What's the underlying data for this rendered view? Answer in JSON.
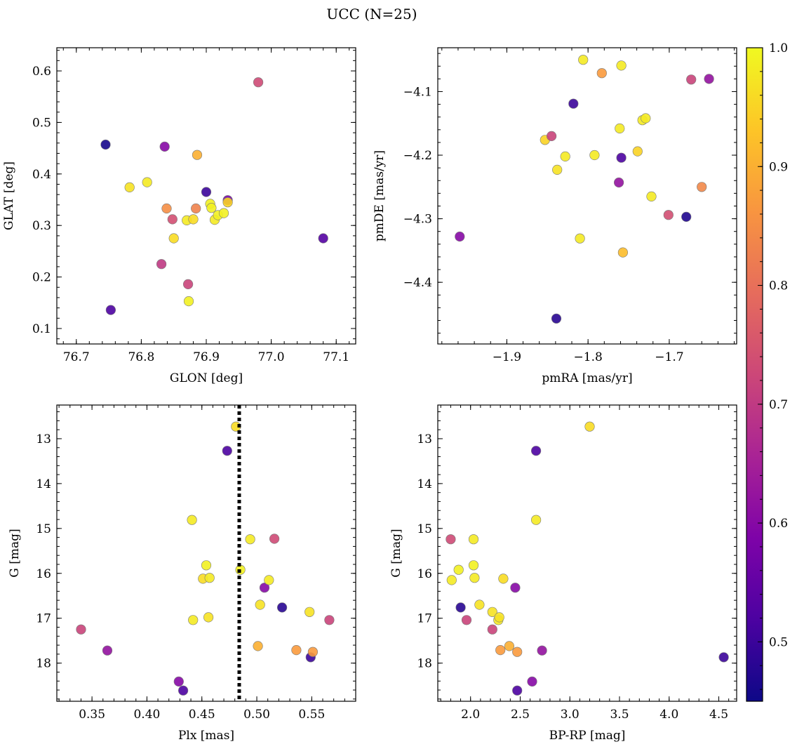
{
  "chart_data": {
    "title": "UCC (N=25)",
    "colorbar": {
      "colormap": "plasma",
      "range": [
        0.45,
        1.0
      ],
      "ticks": [
        0.5,
        0.6,
        0.7,
        0.8,
        0.9,
        1.0
      ],
      "tick_labels": [
        "0.5",
        "0.6",
        "0.7",
        "0.8",
        "0.9",
        "1.0"
      ]
    },
    "panels": [
      {
        "id": "sky",
        "type": "scatter",
        "xlabel": "GLON [deg]",
        "ylabel": "GLAT [deg]",
        "xlim": [
          76.67,
          77.13
        ],
        "ylim": [
          0.07,
          0.645
        ],
        "y_inverted": false,
        "xticks": [
          76.7,
          76.8,
          76.9,
          77.0,
          77.1
        ],
        "xtick_labels": [
          "76.7",
          "76.8",
          "76.9",
          "77.0",
          "77.1"
        ],
        "yticks": [
          0.1,
          0.2,
          0.3,
          0.4,
          0.5,
          0.6
        ],
        "ytick_labels": [
          "0.1",
          "0.2",
          "0.3",
          "0.4",
          "0.5",
          "0.6"
        ],
        "x_minor_step": 0.02,
        "y_minor_step": 0.02,
        "points": [
          {
            "x": 76.745,
            "y": 0.457,
            "c": 0.46
          },
          {
            "x": 76.753,
            "y": 0.136,
            "c": 0.52
          },
          {
            "x": 76.782,
            "y": 0.374,
            "c": 0.97
          },
          {
            "x": 76.809,
            "y": 0.384,
            "c": 0.98
          },
          {
            "x": 76.831,
            "y": 0.225,
            "c": 0.7
          },
          {
            "x": 76.836,
            "y": 0.453,
            "c": 0.6
          },
          {
            "x": 76.839,
            "y": 0.333,
            "c": 0.85
          },
          {
            "x": 76.848,
            "y": 0.312,
            "c": 0.74
          },
          {
            "x": 76.85,
            "y": 0.275,
            "c": 0.96
          },
          {
            "x": 76.87,
            "y": 0.31,
            "c": 0.98
          },
          {
            "x": 76.872,
            "y": 0.186,
            "c": 0.72
          },
          {
            "x": 76.873,
            "y": 0.153,
            "c": 0.99
          },
          {
            "x": 76.88,
            "y": 0.312,
            "c": 0.96
          },
          {
            "x": 76.884,
            "y": 0.333,
            "c": 0.83
          },
          {
            "x": 76.886,
            "y": 0.437,
            "c": 0.9
          },
          {
            "x": 76.9,
            "y": 0.365,
            "c": 0.5
          },
          {
            "x": 76.906,
            "y": 0.342,
            "c": 0.99
          },
          {
            "x": 76.908,
            "y": 0.334,
            "c": 0.99
          },
          {
            "x": 76.913,
            "y": 0.311,
            "c": 0.98
          },
          {
            "x": 76.918,
            "y": 0.32,
            "c": 0.99
          },
          {
            "x": 76.927,
            "y": 0.324,
            "c": 0.99
          },
          {
            "x": 76.933,
            "y": 0.349,
            "c": 0.58
          },
          {
            "x": 76.933,
            "y": 0.345,
            "c": 0.95
          },
          {
            "x": 76.98,
            "y": 0.578,
            "c": 0.73
          },
          {
            "x": 77.08,
            "y": 0.275,
            "c": 0.53
          }
        ]
      },
      {
        "id": "pm",
        "type": "scatter",
        "xlabel": "pmRA [mas/yr]",
        "ylabel": "pmDE [mas/yr]",
        "xlim": [
          -1.985,
          -1.617
        ],
        "ylim": [
          -4.497,
          -4.031
        ],
        "y_inverted": false,
        "xticks": [
          -1.9,
          -1.8,
          -1.7
        ],
        "xtick_labels": [
          "−1.9",
          "−1.8",
          "−1.7"
        ],
        "yticks": [
          -4.4,
          -4.3,
          -4.2,
          -4.1
        ],
        "ytick_labels": [
          "−4.4",
          "−4.3",
          "−4.2",
          "−4.1"
        ],
        "x_minor_step": 0.02,
        "y_minor_step": 0.02,
        "points": [
          {
            "x": -1.958,
            "y": -4.328,
            "c": 0.6
          },
          {
            "x": -1.853,
            "y": -4.176,
            "c": 0.95
          },
          {
            "x": -1.845,
            "y": -4.17,
            "c": 0.72
          },
          {
            "x": -1.839,
            "y": -4.457,
            "c": 0.48
          },
          {
            "x": -1.838,
            "y": -4.223,
            "c": 0.97
          },
          {
            "x": -1.828,
            "y": -4.202,
            "c": 0.98
          },
          {
            "x": -1.818,
            "y": -4.119,
            "c": 0.5
          },
          {
            "x": -1.81,
            "y": -4.331,
            "c": 0.98
          },
          {
            "x": -1.806,
            "y": -4.05,
            "c": 0.98
          },
          {
            "x": -1.792,
            "y": -4.2,
            "c": 0.98
          },
          {
            "x": -1.783,
            "y": -4.071,
            "c": 0.87
          },
          {
            "x": -1.762,
            "y": -4.243,
            "c": 0.62
          },
          {
            "x": -1.761,
            "y": -4.158,
            "c": 0.98
          },
          {
            "x": -1.759,
            "y": -4.059,
            "c": 0.98
          },
          {
            "x": -1.759,
            "y": -4.204,
            "c": 0.52
          },
          {
            "x": -1.757,
            "y": -4.353,
            "c": 0.92
          },
          {
            "x": -1.739,
            "y": -4.194,
            "c": 0.95
          },
          {
            "x": -1.733,
            "y": -4.145,
            "c": 0.98
          },
          {
            "x": -1.729,
            "y": -4.142,
            "c": 0.98
          },
          {
            "x": -1.722,
            "y": -4.265,
            "c": 0.98
          },
          {
            "x": -1.701,
            "y": -4.294,
            "c": 0.74
          },
          {
            "x": -1.679,
            "y": -4.297,
            "c": 0.47
          },
          {
            "x": -1.673,
            "y": -4.081,
            "c": 0.72
          },
          {
            "x": -1.66,
            "y": -4.25,
            "c": 0.84
          },
          {
            "x": -1.651,
            "y": -4.08,
            "c": 0.62
          }
        ]
      },
      {
        "id": "plx",
        "type": "scatter",
        "xlabel": "Plx [mas]",
        "ylabel": "G [mag]",
        "xlim": [
          0.318,
          0.59
        ],
        "ylim": [
          18.85,
          12.25
        ],
        "y_inverted": true,
        "xticks": [
          0.35,
          0.4,
          0.45,
          0.5,
          0.55
        ],
        "xtick_labels": [
          "0.35",
          "0.40",
          "0.45",
          "0.50",
          "0.55"
        ],
        "yticks": [
          13,
          14,
          15,
          16,
          17,
          18
        ],
        "ytick_labels": [
          "13",
          "14",
          "15",
          "16",
          "17",
          "18"
        ],
        "x_minor_step": 0.01,
        "y_minor_step": 0.2,
        "vline": {
          "x": 0.484,
          "style": "dotted",
          "color": "#000000"
        },
        "points": [
          {
            "x": 0.34,
            "y": 17.25,
            "c": 0.72
          },
          {
            "x": 0.364,
            "y": 17.72,
            "c": 0.62
          },
          {
            "x": 0.429,
            "y": 18.41,
            "c": 0.6
          },
          {
            "x": 0.433,
            "y": 18.61,
            "c": 0.52
          },
          {
            "x": 0.441,
            "y": 14.81,
            "c": 0.98
          },
          {
            "x": 0.442,
            "y": 17.04,
            "c": 0.98
          },
          {
            "x": 0.451,
            "y": 16.12,
            "c": 0.96
          },
          {
            "x": 0.454,
            "y": 15.82,
            "c": 0.99
          },
          {
            "x": 0.456,
            "y": 16.98,
            "c": 0.97
          },
          {
            "x": 0.457,
            "y": 16.1,
            "c": 0.98
          },
          {
            "x": 0.473,
            "y": 13.27,
            "c": 0.52
          },
          {
            "x": 0.481,
            "y": 12.73,
            "c": 0.96
          },
          {
            "x": 0.485,
            "y": 15.92,
            "c": 0.99
          },
          {
            "x": 0.494,
            "y": 15.24,
            "c": 0.98
          },
          {
            "x": 0.501,
            "y": 17.62,
            "c": 0.9
          },
          {
            "x": 0.503,
            "y": 16.7,
            "c": 0.97
          },
          {
            "x": 0.507,
            "y": 16.32,
            "c": 0.6
          },
          {
            "x": 0.511,
            "y": 16.15,
            "c": 0.98
          },
          {
            "x": 0.516,
            "y": 15.23,
            "c": 0.73
          },
          {
            "x": 0.523,
            "y": 16.76,
            "c": 0.48
          },
          {
            "x": 0.536,
            "y": 17.71,
            "c": 0.87
          },
          {
            "x": 0.548,
            "y": 16.86,
            "c": 0.97
          },
          {
            "x": 0.549,
            "y": 17.87,
            "c": 0.5
          },
          {
            "x": 0.551,
            "y": 17.75,
            "c": 0.87
          },
          {
            "x": 0.566,
            "y": 17.04,
            "c": 0.72
          }
        ]
      },
      {
        "id": "cmd",
        "type": "scatter",
        "xlabel": "BP-RP [mag]",
        "ylabel": "G [mag]",
        "xlim": [
          1.67,
          4.68
        ],
        "ylim": [
          18.85,
          12.25
        ],
        "y_inverted": true,
        "xticks": [
          2.0,
          2.5,
          3.0,
          3.5,
          4.0,
          4.5
        ],
        "xtick_labels": [
          "2.0",
          "2.5",
          "3.0",
          "3.5",
          "4.0",
          "4.5"
        ],
        "yticks": [
          13,
          14,
          15,
          16,
          17,
          18
        ],
        "ytick_labels": [
          "13",
          "14",
          "15",
          "16",
          "17",
          "18"
        ],
        "x_minor_step": 0.1,
        "y_minor_step": 0.2,
        "points": [
          {
            "x": 1.8,
            "y": 15.24,
            "c": 0.73
          },
          {
            "x": 1.81,
            "y": 16.15,
            "c": 0.98
          },
          {
            "x": 1.88,
            "y": 15.92,
            "c": 0.99
          },
          {
            "x": 1.9,
            "y": 16.76,
            "c": 0.48
          },
          {
            "x": 1.96,
            "y": 17.04,
            "c": 0.72
          },
          {
            "x": 2.03,
            "y": 15.24,
            "c": 0.98
          },
          {
            "x": 2.03,
            "y": 15.82,
            "c": 0.99
          },
          {
            "x": 2.04,
            "y": 16.1,
            "c": 0.98
          },
          {
            "x": 2.09,
            "y": 16.7,
            "c": 0.97
          },
          {
            "x": 2.22,
            "y": 16.86,
            "c": 0.97
          },
          {
            "x": 2.22,
            "y": 17.25,
            "c": 0.72
          },
          {
            "x": 2.28,
            "y": 17.04,
            "c": 0.98
          },
          {
            "x": 2.29,
            "y": 16.98,
            "c": 0.97
          },
          {
            "x": 2.3,
            "y": 17.71,
            "c": 0.87
          },
          {
            "x": 2.33,
            "y": 16.12,
            "c": 0.96
          },
          {
            "x": 2.39,
            "y": 17.62,
            "c": 0.9
          },
          {
            "x": 2.45,
            "y": 16.32,
            "c": 0.6
          },
          {
            "x": 2.47,
            "y": 17.75,
            "c": 0.87
          },
          {
            "x": 2.47,
            "y": 18.61,
            "c": 0.52
          },
          {
            "x": 2.62,
            "y": 18.41,
            "c": 0.6
          },
          {
            "x": 2.66,
            "y": 13.27,
            "c": 0.52
          },
          {
            "x": 2.66,
            "y": 14.81,
            "c": 0.98
          },
          {
            "x": 2.72,
            "y": 17.72,
            "c": 0.62
          },
          {
            "x": 3.2,
            "y": 12.73,
            "c": 0.96
          },
          {
            "x": 4.55,
            "y": 17.87,
            "c": 0.5
          }
        ]
      }
    ]
  }
}
